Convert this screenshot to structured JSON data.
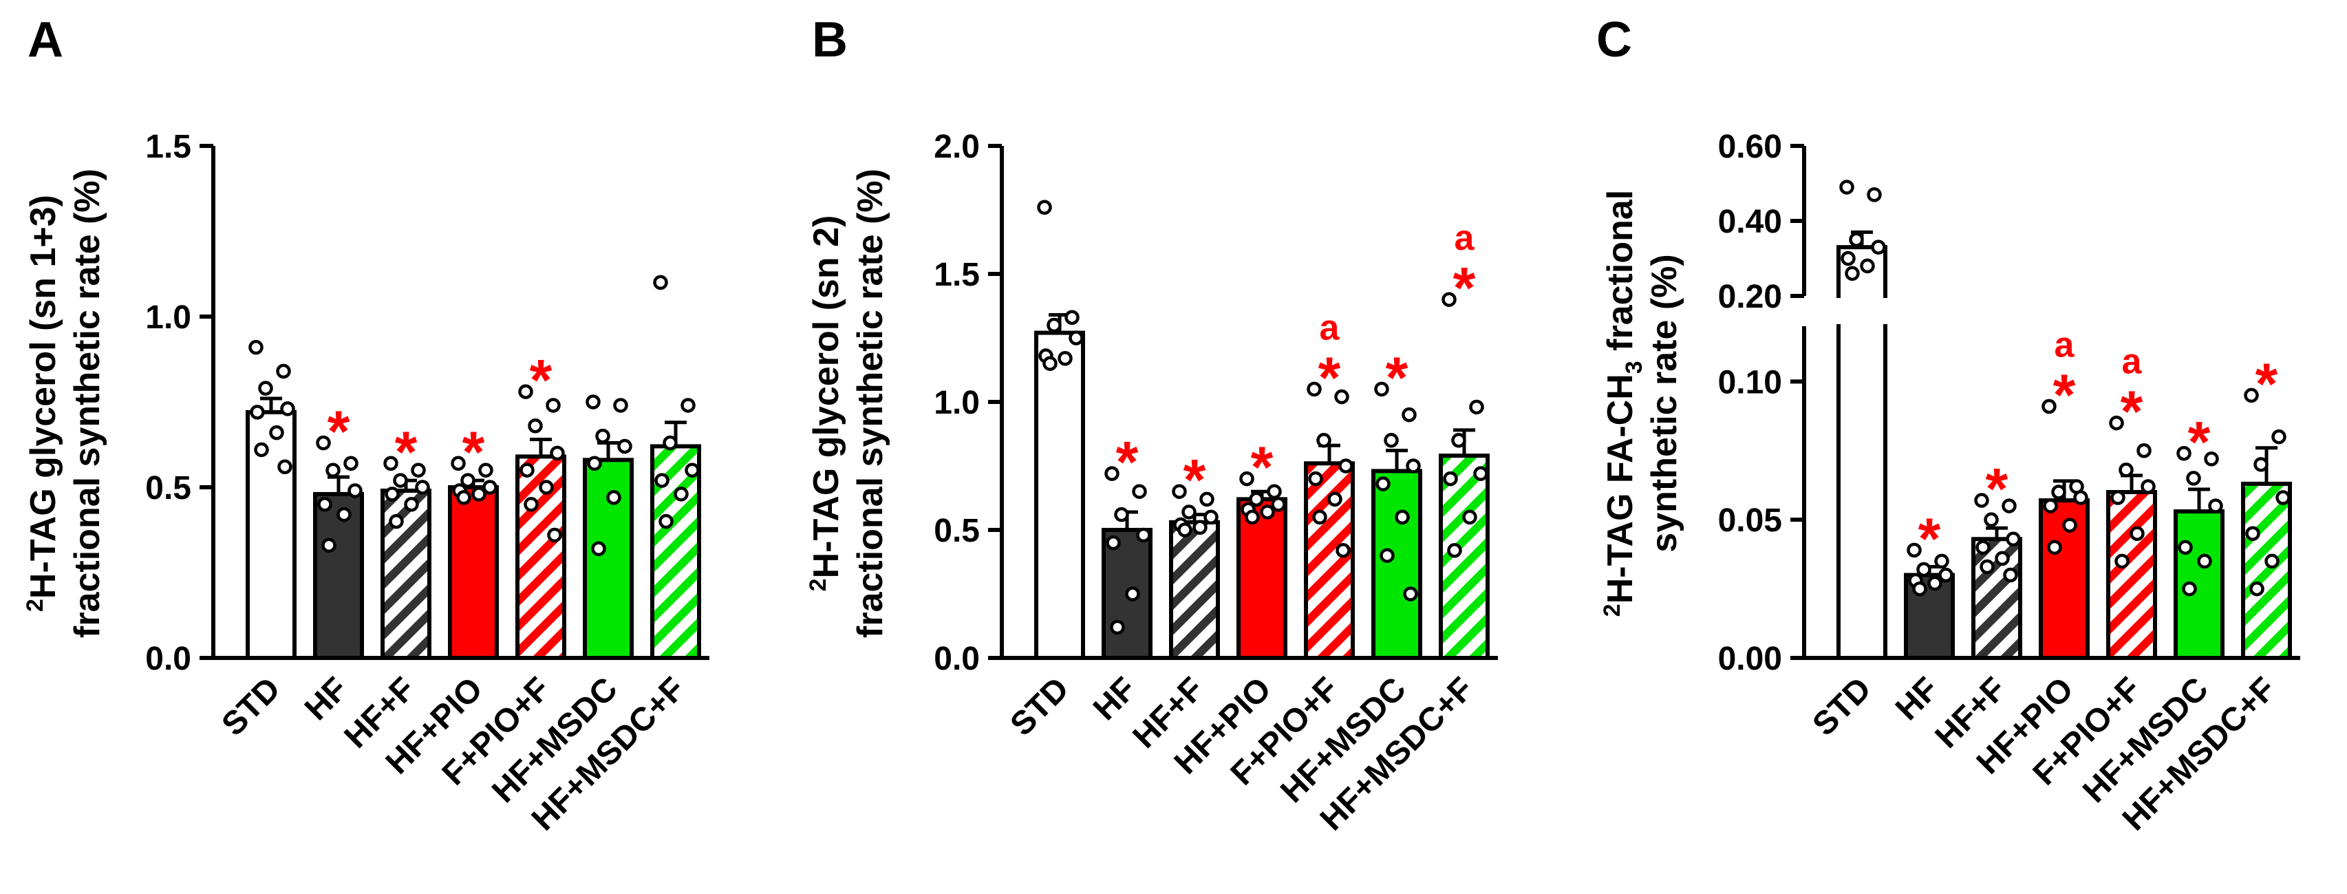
{
  "figure": {
    "colors": {
      "std": "#ffffff",
      "hf": "#333333",
      "hf_f": "#333333",
      "pio": "#ff0000",
      "msdc": "#00e600",
      "sig": "#ff0000",
      "axis": "#000000"
    },
    "categories": [
      "STD",
      "HF",
      "HF+F",
      "HF+PIO",
      "F+PIO+F",
      "HF+MSDC",
      "HF+MSDC+F"
    ],
    "bar_styles": [
      "open",
      "solid",
      "hatched",
      "solid",
      "hatched",
      "solid",
      "hatched"
    ],
    "bar_color_keys": [
      "std",
      "hf",
      "hf_f",
      "pio",
      "pio",
      "msdc",
      "msdc"
    ]
  },
  "chart_data": [
    {
      "panel": "A",
      "type": "bar",
      "ylabel_sup": "2",
      "ylabel_line1": "H-TAG glycerol (sn 1+3)",
      "ylabel_line2": "fractional synthetic rate (%)",
      "ylim": [
        0,
        1.5
      ],
      "yticks": [
        0.0,
        0.5,
        1.0,
        1.5
      ],
      "ytick_labels": [
        "0.0",
        "0.5",
        "1.0",
        "1.5"
      ],
      "categories": [
        "STD",
        "HF",
        "HF+F",
        "HF+PIO",
        "F+PIO+F",
        "HF+MSDC",
        "HF+MSDC+F"
      ],
      "values": [
        0.72,
        0.48,
        0.49,
        0.5,
        0.59,
        0.58,
        0.62
      ],
      "errors": [
        0.04,
        0.05,
        0.03,
        0.02,
        0.05,
        0.05,
        0.07
      ],
      "points": [
        [
          0.91,
          0.84,
          0.79,
          0.73,
          0.72,
          0.66,
          0.61,
          0.56
        ],
        [
          0.63,
          0.57,
          0.55,
          0.49,
          0.45,
          0.42,
          0.33
        ],
        [
          0.57,
          0.55,
          0.52,
          0.5,
          0.48,
          0.45,
          0.4
        ],
        [
          0.57,
          0.55,
          0.52,
          0.5,
          0.49,
          0.48,
          0.47
        ],
        [
          0.78,
          0.74,
          0.68,
          0.6,
          0.55,
          0.5,
          0.45,
          0.36
        ],
        [
          0.75,
          0.74,
          0.65,
          0.62,
          0.57,
          0.47,
          0.32
        ],
        [
          1.1,
          0.74,
          0.63,
          0.55,
          0.52,
          0.48,
          0.4
        ]
      ],
      "annotations": [
        "",
        "*",
        "*",
        "*",
        "*",
        "",
        ""
      ],
      "letters": [
        "",
        "",
        "",
        "",
        "",
        "",
        ""
      ]
    },
    {
      "panel": "B",
      "type": "bar",
      "ylabel_sup": "2",
      "ylabel_line1": "H-TAG glycerol (sn 2)",
      "ylabel_line2": "fractional synthetic rate (%)",
      "ylim": [
        0,
        2.0
      ],
      "yticks": [
        0.0,
        0.5,
        1.0,
        1.5,
        2.0
      ],
      "ytick_labels": [
        "0.0",
        "0.5",
        "1.0",
        "1.5",
        "2.0"
      ],
      "categories": [
        "STD",
        "HF",
        "HF+F",
        "HF+PIO",
        "F+PIO+F",
        "HF+MSDC",
        "HF+MSDC+F"
      ],
      "values": [
        1.27,
        0.5,
        0.53,
        0.62,
        0.76,
        0.73,
        0.79
      ],
      "errors": [
        0.07,
        0.07,
        0.03,
        0.03,
        0.07,
        0.08,
        0.1
      ],
      "points": [
        [
          1.76,
          1.33,
          1.3,
          1.25,
          1.18,
          1.17,
          1.15
        ],
        [
          0.72,
          0.65,
          0.56,
          0.48,
          0.45,
          0.25,
          0.12
        ],
        [
          0.65,
          0.62,
          0.57,
          0.55,
          0.52,
          0.51,
          0.5
        ],
        [
          0.7,
          0.65,
          0.62,
          0.6,
          0.58,
          0.57,
          0.55
        ],
        [
          1.05,
          1.02,
          0.85,
          0.75,
          0.7,
          0.62,
          0.55,
          0.42
        ],
        [
          1.05,
          0.95,
          0.85,
          0.75,
          0.68,
          0.55,
          0.4,
          0.25
        ],
        [
          1.4,
          0.98,
          0.85,
          0.72,
          0.7,
          0.55,
          0.42
        ]
      ],
      "annotations": [
        "",
        "*",
        "*",
        "*",
        "*",
        "*",
        "*"
      ],
      "letters": [
        "",
        "",
        "",
        "",
        "a",
        "",
        "a"
      ]
    },
    {
      "panel": "C",
      "type": "bar",
      "ylabel_sup": "2",
      "ylabel_pre": "H-TAG FA-CH",
      "ylabel_sub": "3",
      "ylabel_post": " fractional",
      "ylabel_line2": "synthetic rate (%)",
      "axis_break": true,
      "lower_ylim": [
        0,
        0.12
      ],
      "lower_yticks": [
        0.0,
        0.05,
        0.1
      ],
      "lower_ytick_labels": [
        "0.00",
        "0.05",
        "0.10"
      ],
      "upper_ylim": [
        0.2,
        0.6
      ],
      "upper_yticks": [
        0.2,
        0.4,
        0.6
      ],
      "upper_ytick_labels": [
        "0.20",
        "0.40",
        "0.60"
      ],
      "categories": [
        "STD",
        "HF",
        "HF+F",
        "HF+PIO",
        "F+PIO+F",
        "HF+MSDC",
        "HF+MSDC+F"
      ],
      "values": [
        0.33,
        0.03,
        0.043,
        0.057,
        0.06,
        0.053,
        0.063
      ],
      "errors": [
        0.04,
        0.003,
        0.004,
        0.007,
        0.006,
        0.008,
        0.013
      ],
      "points": [
        [
          0.49,
          0.47,
          0.35,
          0.33,
          0.3,
          0.28,
          0.26
        ],
        [
          0.039,
          0.035,
          0.032,
          0.03,
          0.028,
          0.027,
          0.025
        ],
        [
          0.057,
          0.055,
          0.05,
          0.043,
          0.04,
          0.036,
          0.033,
          0.03
        ],
        [
          0.091,
          0.062,
          0.06,
          0.058,
          0.055,
          0.048,
          0.04
        ],
        [
          0.085,
          0.075,
          0.068,
          0.062,
          0.058,
          0.045,
          0.035
        ],
        [
          0.074,
          0.072,
          0.065,
          0.055,
          0.04,
          0.035,
          0.025
        ],
        [
          0.095,
          0.08,
          0.07,
          0.058,
          0.045,
          0.035,
          0.025
        ]
      ],
      "annotations": [
        "",
        "*",
        "*",
        "*",
        "*",
        "*",
        "*"
      ],
      "letters": [
        "",
        "",
        "",
        "a",
        "a",
        "",
        ""
      ]
    }
  ],
  "panel_labels": [
    "A",
    "B",
    "C"
  ]
}
